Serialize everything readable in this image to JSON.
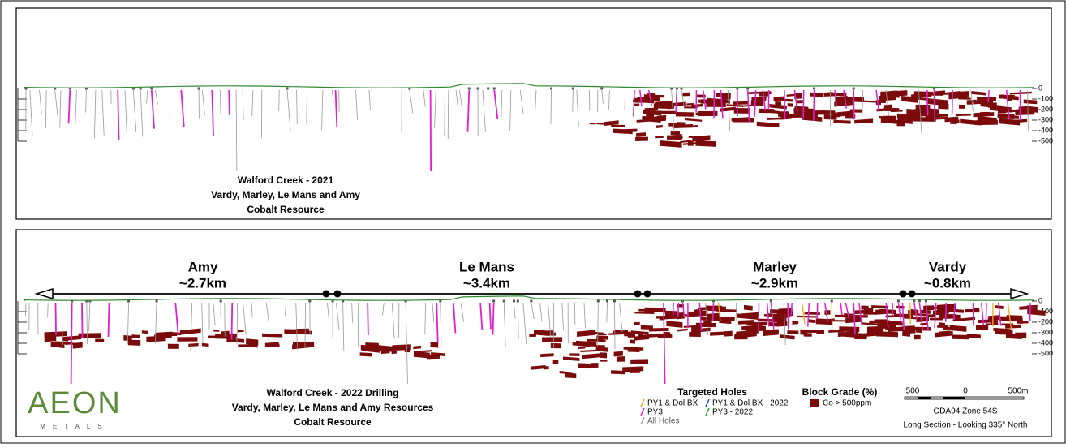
{
  "panel_2021": {
    "title_lines": [
      "Walford Creek - 2021",
      "Vardy, Marley, Le Mans and Amy",
      "Cobalt Resource"
    ],
    "depth_labels": [
      "0",
      "-100",
      "-200",
      "-300",
      "-400",
      "-500"
    ]
  },
  "panel_2022": {
    "sections": [
      {
        "name": "Amy",
        "length": "~2.7km"
      },
      {
        "name": "Le Mans",
        "length": "~3.4km"
      },
      {
        "name": "Marley",
        "length": "~2.9km"
      },
      {
        "name": "Vardy",
        "length": "~0.8km"
      }
    ],
    "depth_labels": [
      "0",
      "-100",
      "-200",
      "-300",
      "-400",
      "-500"
    ],
    "title_lines": [
      "Walford Creek - 2022 Drilling",
      "Vardy, Marley, Le Mans and Amy Resources",
      "Cobalt Resource"
    ],
    "legend": {
      "targeted_title": "Targeted Holes",
      "items": [
        "PY1 & Dol BX",
        "PY1 & Dol BX - 2022",
        "PY3",
        "PY3 - 2022",
        "All Holes"
      ],
      "block_title": "Block Grade (%)",
      "block_item": "Co > 500ppm"
    },
    "scale_labels": [
      "500",
      "0",
      "500m"
    ],
    "projection": "GDA94 Zone 54S",
    "view": "Long Section - Looking 335° North",
    "logo": {
      "name": "AEON",
      "sub": "METALS"
    }
  }
}
